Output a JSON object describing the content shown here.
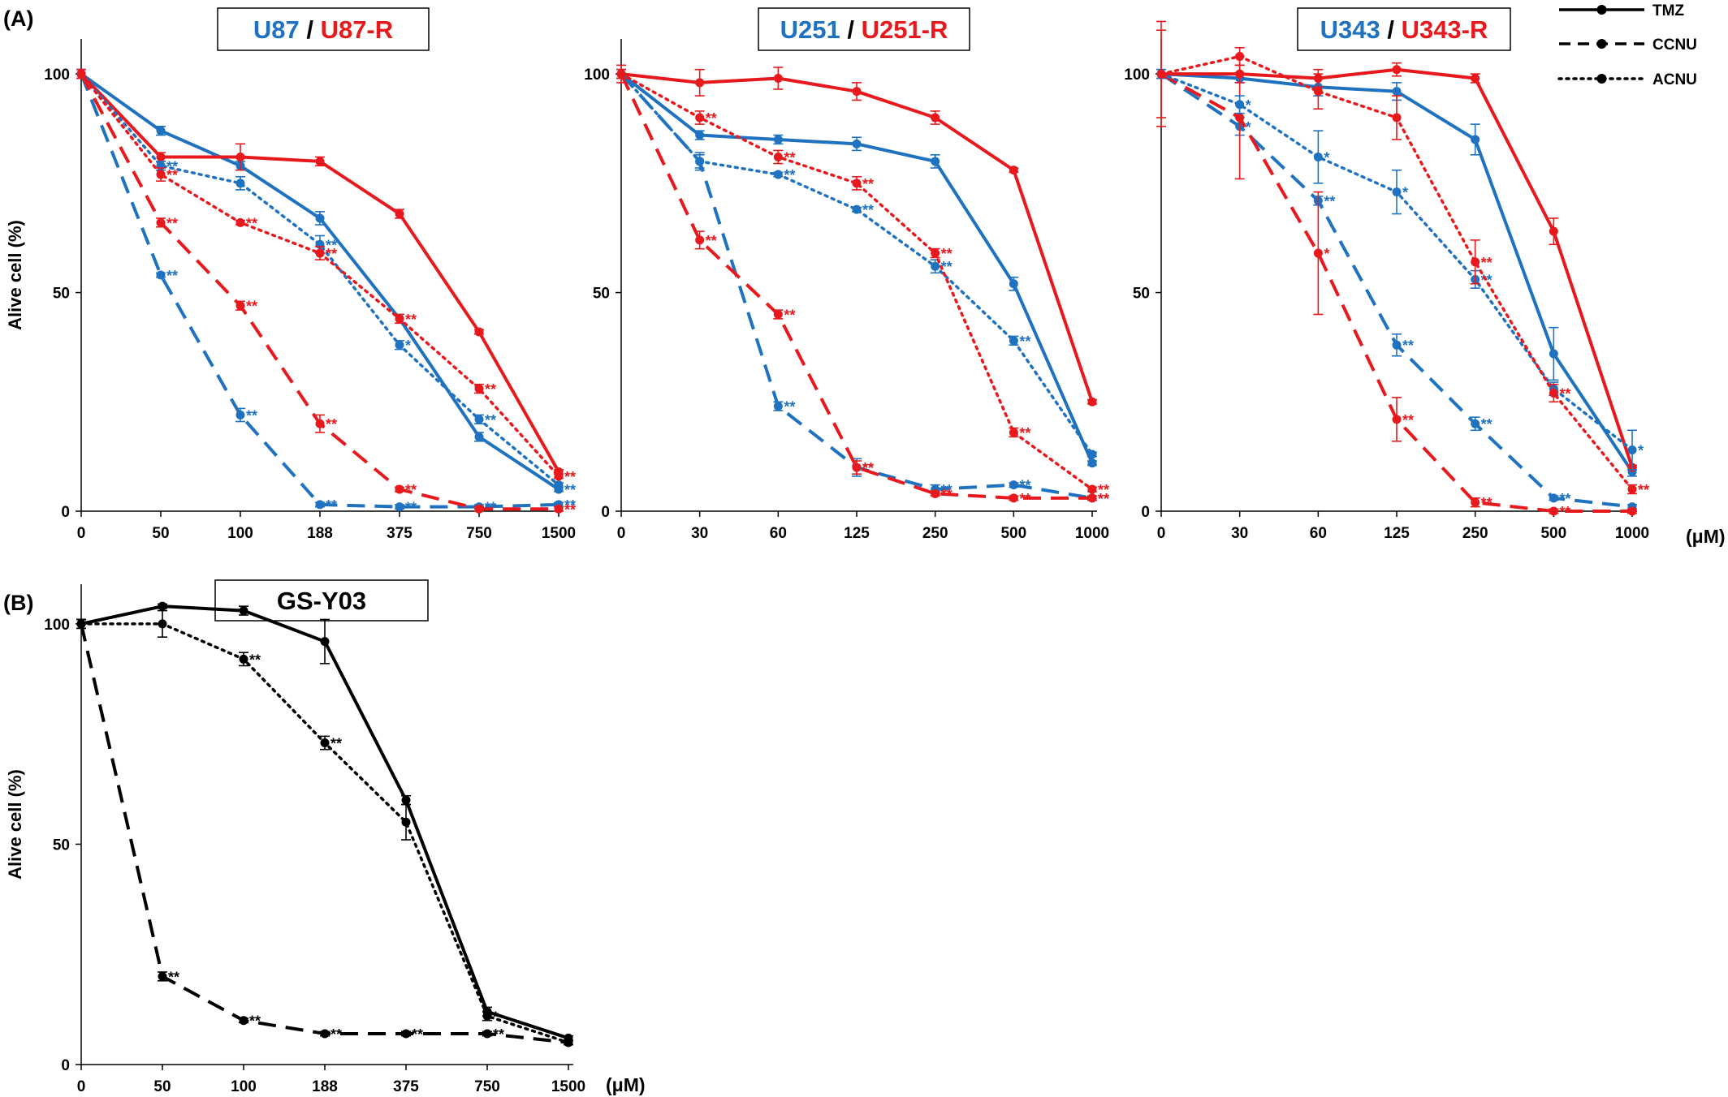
{
  "figure": {
    "panel_a_label": "(A)",
    "panel_b_label": "(B)",
    "unit_label": "(μM)"
  },
  "colors": {
    "parental": "#1f72c0",
    "resistant": "#e8191c",
    "black": "#000000"
  },
  "legend": {
    "items": [
      {
        "name": "TMZ",
        "dash": "solid"
      },
      {
        "name": "CCNU",
        "dash": "dashed"
      },
      {
        "name": "ACNU",
        "dash": "dotted"
      }
    ]
  },
  "chart_data": [
    {
      "id": "u87",
      "type": "line",
      "title_parts": [
        {
          "text": "U87",
          "color": "#1f72c0"
        },
        {
          "text": " / ",
          "color": "#000000"
        },
        {
          "text": "U87-R",
          "color": "#e8191c"
        }
      ],
      "ylabel": "Alive cell (%)",
      "x": [
        "0",
        "50",
        "100",
        "188",
        "375",
        "750",
        "1500"
      ],
      "ylim": [
        0,
        100
      ],
      "yticks": [
        0,
        50,
        100
      ],
      "series": [
        {
          "drug": "TMZ",
          "cell": "U87",
          "color": "#1f72c0",
          "dash": "solid",
          "values": [
            100,
            87,
            79,
            67,
            44,
            17,
            5
          ],
          "err": [
            1,
            1,
            1,
            1.5,
            1,
            1,
            0.5
          ],
          "marks": [
            "",
            "",
            "",
            "",
            "",
            "",
            "**"
          ]
        },
        {
          "drug": "TMZ",
          "cell": "U87-R",
          "color": "#e8191c",
          "dash": "solid",
          "values": [
            100,
            81,
            81,
            80,
            68,
            41,
            9
          ],
          "err": [
            1,
            1,
            3,
            1,
            1,
            0.5,
            0.5
          ],
          "marks": [
            "",
            "",
            "",
            "",
            "",
            "",
            ""
          ]
        },
        {
          "drug": "CCNU",
          "cell": "U87",
          "color": "#1f72c0",
          "dash": "dashed",
          "values": [
            100,
            54,
            22,
            1.5,
            1,
            1,
            1.5
          ],
          "err": [
            1,
            0.5,
            1.5,
            0.5,
            0.5,
            0.5,
            0.5
          ],
          "marks": [
            "",
            "**",
            "**",
            "**",
            "**",
            "**",
            "**"
          ]
        },
        {
          "drug": "CCNU",
          "cell": "U87-R",
          "color": "#e8191c",
          "dash": "dashed",
          "values": [
            100,
            66,
            47,
            20,
            5,
            0.5,
            0.5
          ],
          "err": [
            1,
            1,
            1,
            2,
            0.5,
            0.5,
            0.5
          ],
          "marks": [
            "",
            "**",
            "**",
            "**",
            "**",
            "",
            "**"
          ]
        },
        {
          "drug": "ACNU",
          "cell": "U87",
          "color": "#1f72c0",
          "dash": "dotted",
          "values": [
            100,
            79,
            75,
            61,
            38,
            21,
            6
          ],
          "err": [
            1,
            1,
            1.5,
            2,
            1,
            1,
            0.5
          ],
          "marks": [
            "",
            "**",
            "",
            "**",
            "*",
            "**",
            ""
          ]
        },
        {
          "drug": "ACNU",
          "cell": "U87-R",
          "color": "#e8191c",
          "dash": "dotted",
          "values": [
            100,
            77,
            66,
            59,
            44,
            28,
            8
          ],
          "err": [
            1,
            1.5,
            0.5,
            1.5,
            1,
            1,
            0.5
          ],
          "marks": [
            "",
            "**",
            "**",
            "**",
            "**",
            "**",
            "**"
          ]
        }
      ]
    },
    {
      "id": "u251",
      "type": "line",
      "title_parts": [
        {
          "text": "U251",
          "color": "#1f72c0"
        },
        {
          "text": " / ",
          "color": "#000000"
        },
        {
          "text": "U251-R",
          "color": "#e8191c"
        }
      ],
      "ylabel": "",
      "x": [
        "0",
        "30",
        "60",
        "125",
        "250",
        "500",
        "1000"
      ],
      "ylim": [
        0,
        100
      ],
      "yticks": [
        0,
        50,
        100
      ],
      "series": [
        {
          "drug": "TMZ",
          "cell": "U251",
          "color": "#1f72c0",
          "dash": "solid",
          "values": [
            100,
            86,
            85,
            84,
            80,
            52,
            11
          ],
          "err": [
            1,
            1,
            1,
            1.5,
            1.5,
            1.5,
            0.5
          ],
          "marks": [
            "",
            "",
            "",
            "",
            "",
            "",
            ""
          ]
        },
        {
          "drug": "TMZ",
          "cell": "U251-R",
          "color": "#e8191c",
          "dash": "solid",
          "values": [
            100,
            98,
            99,
            96,
            90,
            78,
            25
          ],
          "err": [
            2,
            3,
            2.5,
            2,
            1.5,
            0.5,
            0.5
          ],
          "marks": [
            "",
            "",
            "",
            "",
            "",
            "",
            ""
          ]
        },
        {
          "drug": "CCNU",
          "cell": "U251",
          "color": "#1f72c0",
          "dash": "dashed",
          "values": [
            100,
            80,
            24,
            10,
            5,
            6,
            3
          ],
          "err": [
            1,
            2,
            1,
            2,
            1,
            0.5,
            0.5
          ],
          "marks": [
            "",
            "",
            "**",
            "**",
            "**",
            "**",
            "**"
          ]
        },
        {
          "drug": "CCNU",
          "cell": "U251-R",
          "color": "#e8191c",
          "dash": "dashed",
          "values": [
            100,
            62,
            45,
            10,
            4,
            3,
            3
          ],
          "err": [
            1,
            2,
            1,
            1.5,
            0.5,
            0.5,
            0.5
          ],
          "marks": [
            "",
            "**",
            "**",
            "**",
            "**",
            "**",
            "**"
          ]
        },
        {
          "drug": "ACNU",
          "cell": "U251",
          "color": "#1f72c0",
          "dash": "dotted",
          "values": [
            100,
            80,
            77,
            69,
            56,
            39,
            13
          ],
          "err": [
            1,
            1.5,
            0.5,
            0.5,
            1.5,
            1,
            0.5
          ],
          "marks": [
            "",
            "",
            "**",
            "**",
            "**",
            "**",
            ""
          ]
        },
        {
          "drug": "ACNU",
          "cell": "U251-R",
          "color": "#e8191c",
          "dash": "dotted",
          "values": [
            100,
            90,
            81,
            75,
            59,
            18,
            5
          ],
          "err": [
            1,
            1.5,
            1.5,
            1.5,
            1,
            1,
            0.5
          ],
          "marks": [
            "",
            "**",
            "**",
            "**",
            "**",
            "**",
            "**"
          ]
        }
      ]
    },
    {
      "id": "u343",
      "type": "line",
      "title_parts": [
        {
          "text": "U343",
          "color": "#1f72c0"
        },
        {
          "text": " / ",
          "color": "#000000"
        },
        {
          "text": "U343-R",
          "color": "#e8191c"
        }
      ],
      "ylabel": "",
      "x": [
        "0",
        "30",
        "60",
        "125",
        "250",
        "500",
        "1000"
      ],
      "ylim": [
        0,
        100
      ],
      "yticks": [
        0,
        50,
        100
      ],
      "series": [
        {
          "drug": "TMZ",
          "cell": "U343",
          "color": "#1f72c0",
          "dash": "solid",
          "values": [
            100,
            99,
            97,
            96,
            85,
            36,
            9
          ],
          "err": [
            1,
            1,
            2,
            2,
            3.5,
            6,
            1
          ],
          "marks": [
            "",
            "",
            "",
            "",
            "",
            "",
            ""
          ]
        },
        {
          "drug": "TMZ",
          "cell": "U343-R",
          "color": "#e8191c",
          "dash": "solid",
          "values": [
            100,
            100,
            99,
            101,
            99,
            64,
            10
          ],
          "err": [
            10,
            2,
            2,
            1.5,
            1,
            3,
            0.5
          ],
          "marks": [
            "",
            "",
            "",
            "",
            "",
            "",
            ""
          ]
        },
        {
          "drug": "CCNU",
          "cell": "U343",
          "color": "#1f72c0",
          "dash": "dashed",
          "values": [
            100,
            88,
            71,
            38,
            20,
            3,
            1
          ],
          "err": [
            1,
            2,
            1,
            2.5,
            1.5,
            0.5,
            0.5
          ],
          "marks": [
            "",
            "*",
            "**",
            "**",
            "**",
            "**",
            ""
          ]
        },
        {
          "drug": "CCNU",
          "cell": "U343-R",
          "color": "#e8191c",
          "dash": "dashed",
          "values": [
            100,
            90,
            59,
            21,
            2,
            0,
            0
          ],
          "err": [
            1,
            14,
            14,
            5,
            1,
            0.5,
            0.5
          ],
          "marks": [
            "",
            "",
            "*",
            "**",
            "**",
            "**",
            ""
          ]
        },
        {
          "drug": "ACNU",
          "cell": "U343",
          "color": "#1f72c0",
          "dash": "dotted",
          "values": [
            100,
            93,
            81,
            73,
            53,
            28,
            14
          ],
          "err": [
            1,
            2,
            6,
            5,
            2,
            1.5,
            4.5
          ],
          "marks": [
            "",
            "*",
            "*",
            "*",
            "**",
            "",
            "*"
          ]
        },
        {
          "drug": "ACNU",
          "cell": "U343-R",
          "color": "#e8191c",
          "dash": "dotted",
          "values": [
            100,
            104,
            96,
            90,
            57,
            27,
            5
          ],
          "err": [
            12,
            2,
            4,
            5,
            5,
            2,
            1
          ],
          "marks": [
            "",
            "",
            "",
            "",
            "**",
            "**",
            "**"
          ]
        }
      ]
    },
    {
      "id": "gsy03",
      "type": "line",
      "title_parts": [
        {
          "text": "GS-Y03",
          "color": "#000000"
        }
      ],
      "ylabel": "Alive cell (%)",
      "x": [
        "0",
        "50",
        "100",
        "188",
        "375",
        "750",
        "1500"
      ],
      "ylim": [
        0,
        100
      ],
      "yticks": [
        0,
        50,
        100
      ],
      "series": [
        {
          "drug": "TMZ",
          "cell": "GS-Y03",
          "color": "#000000",
          "dash": "solid",
          "values": [
            100,
            104,
            103,
            96,
            60,
            12,
            6
          ],
          "err": [
            1,
            0.5,
            1,
            5,
            1,
            1,
            0.5
          ],
          "marks": [
            "",
            "",
            "",
            "",
            "",
            "",
            ""
          ]
        },
        {
          "drug": "CCNU",
          "cell": "GS-Y03",
          "color": "#000000",
          "dash": "dashed",
          "values": [
            100,
            20,
            10,
            7,
            7,
            7,
            5
          ],
          "err": [
            1,
            1,
            0.5,
            0.5,
            0.5,
            0.5,
            0.5
          ],
          "marks": [
            "",
            "**",
            "**",
            "**",
            "**",
            "**",
            ""
          ]
        },
        {
          "drug": "ACNU",
          "cell": "GS-Y03",
          "color": "#000000",
          "dash": "dotted",
          "values": [
            100,
            100,
            92,
            73,
            55,
            11,
            5
          ],
          "err": [
            1,
            3,
            1.5,
            1.5,
            4,
            1,
            0.5
          ],
          "marks": [
            "",
            "",
            "**",
            "**",
            "",
            "*",
            ""
          ]
        }
      ]
    }
  ]
}
